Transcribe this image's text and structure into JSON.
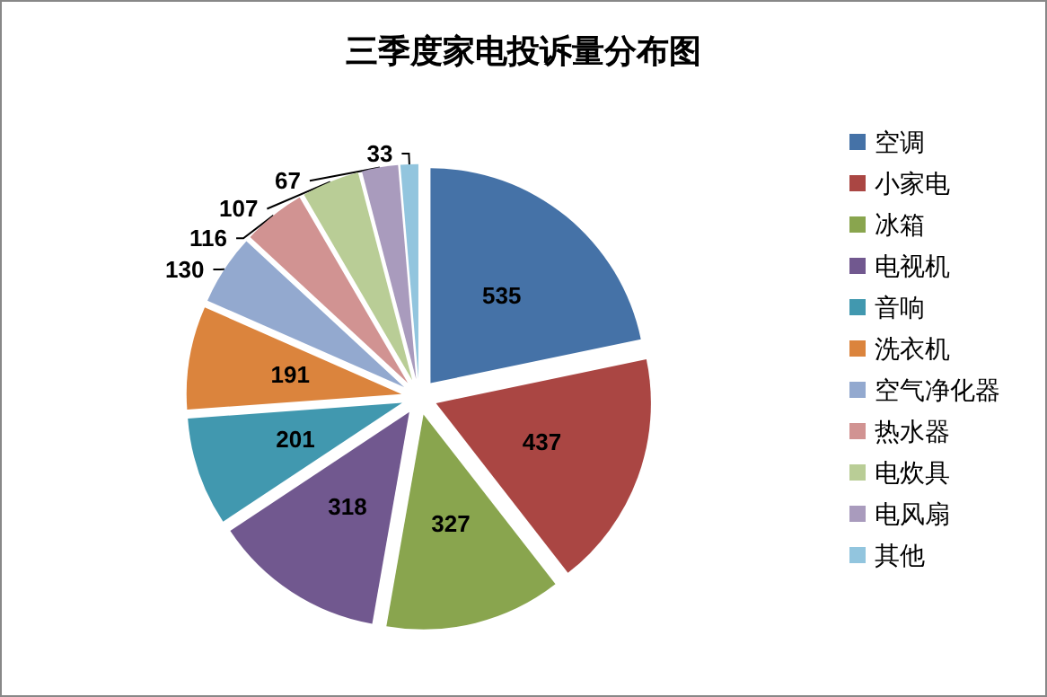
{
  "chart_data": {
    "type": "pie",
    "title": "三季度家电投诉量分布图",
    "categories": [
      "空调",
      "小家电",
      "冰箱",
      "电视机",
      "音响",
      "洗衣机",
      "空气净化器",
      "热水器",
      "电炊具",
      "电风扇",
      "其他"
    ],
    "values": [
      535,
      437,
      327,
      318,
      201,
      191,
      130,
      116,
      107,
      67,
      33
    ],
    "colors": [
      "#4572a7",
      "#aa4643",
      "#89a54e",
      "#71588f",
      "#4198af",
      "#db843d",
      "#93a9cf",
      "#d19392",
      "#b9cd96",
      "#a99bbd",
      "#92c5de"
    ],
    "data_labels": true,
    "legend": "right"
  }
}
